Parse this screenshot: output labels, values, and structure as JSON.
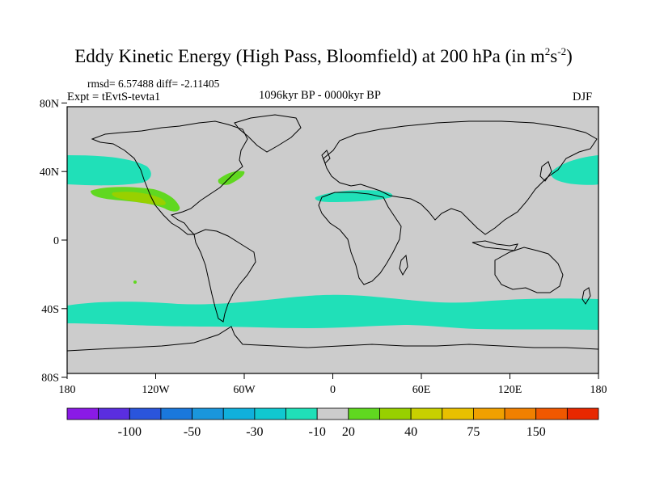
{
  "title": {
    "main": "Eddy Kinetic Energy (High Pass, Bloomfield) at 200 hPa (in m",
    "sup1": "2",
    "mid": "s",
    "sup2": "-2",
    "end": ")"
  },
  "stats": "rmsd= 6.57488 diff= -2.11405",
  "experiment": "Expt = tEvtS-tevta1",
  "period": "1096kyr BP - 0000kyr BP",
  "season": "DJF",
  "lat_labels": [
    "80N",
    "40N",
    "0",
    "40S",
    "80S"
  ],
  "lat_values": [
    80,
    40,
    0,
    -40,
    -80
  ],
  "lon_labels": [
    "180",
    "120W",
    "60W",
    "0",
    "60E",
    "120E",
    "180"
  ],
  "lon_values": [
    -180,
    -120,
    -60,
    0,
    60,
    120,
    180
  ],
  "colorbar": {
    "colors": [
      "#8a1ae6",
      "#5a2ee0",
      "#2a55dc",
      "#1a78dc",
      "#1a96dc",
      "#10b0dc",
      "#10c8d0",
      "#20e0b8",
      "#cccccc",
      "#60d820",
      "#98d000",
      "#c8d000",
      "#e8c000",
      "#f0a000",
      "#f08000",
      "#f05800",
      "#e82800"
    ],
    "labels": [
      "-100",
      "-50",
      "-30",
      "-10",
      "20",
      "40",
      "75",
      "150"
    ],
    "label_boundary_index": [
      2,
      4,
      6,
      8,
      9,
      11,
      13,
      15
    ]
  },
  "colors": {
    "land_ocean_gray": "#cccccc",
    "neg_small": "#20e0b8",
    "pos_small": "#60d820",
    "pos_mid": "#98d000"
  }
}
